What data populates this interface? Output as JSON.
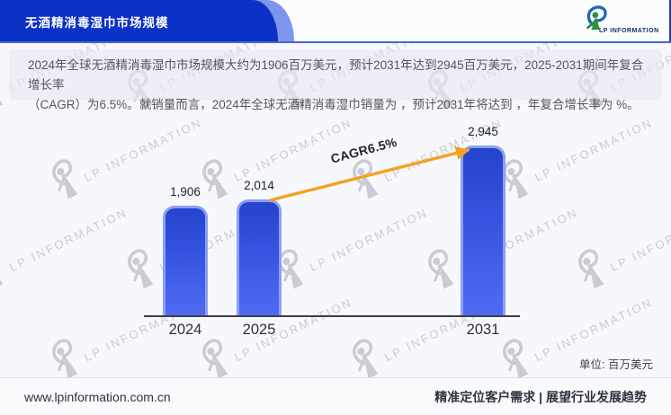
{
  "header": {
    "title": "无酒精消毒湿巾市场规模",
    "logo_text": "LP INFORMATION"
  },
  "summary": {
    "line1": "2024年全球无酒精消毒湿巾市场规模大约为1906百万美元，预计2031年达到2945百万美元，2025-2031期间年复合增长率",
    "line2": "（CAGR）为6.5%。就销量而言，2024年全球无酒精消毒湿巾销量为 ，预计2031年将达到 ，年复合增长率为 %。"
  },
  "chart_data": {
    "type": "bar",
    "title": "",
    "xlabel": "",
    "ylabel": "",
    "categories": [
      "2024",
      "2025",
      "2031"
    ],
    "values": [
      1906,
      2014,
      2945
    ],
    "value_labels": [
      "1,906",
      "2,014",
      "2,945"
    ],
    "ylim": [
      0,
      2945
    ],
    "grid": false,
    "legend": false,
    "annotation": "CAGR6.5%",
    "unit_label": "单位: 百万美元"
  },
  "footer": {
    "website": "www.lpinformation.com.cn",
    "slogan": "精准定位客户需求 | 展望行业发展趋势"
  },
  "watermark": {
    "text": "LP INFORMATION"
  },
  "colors": {
    "header_bar": "#0c31c6",
    "header_accent": "#7b96ec",
    "header_divider": "#4667d2",
    "bar_top": "#2544cc",
    "bar_bottom": "#4f6bf2",
    "bar_border": "#8aa0f3",
    "arrow": "#f5a11f",
    "watermark_gray": "#a6a8b3"
  }
}
